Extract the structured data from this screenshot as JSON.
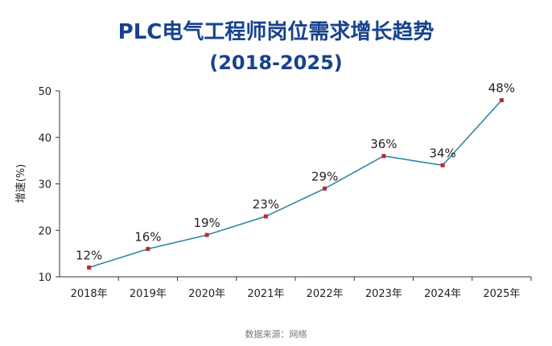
{
  "chart_data": {
    "type": "line",
    "title": "PLC电气工程师岗位需求增长趋势",
    "subtitle": "(2018-2025)",
    "ylabel": "增速(%)",
    "xlabel": "",
    "categories": [
      "2018年",
      "2019年",
      "2020年",
      "2021年",
      "2022年",
      "2023年",
      "2024年",
      "2025年"
    ],
    "values": [
      12,
      16,
      19,
      23,
      29,
      36,
      34,
      48
    ],
    "data_labels": [
      "12%",
      "16%",
      "19%",
      "23%",
      "29%",
      "36%",
      "34%",
      "48%"
    ],
    "ylim": [
      10,
      50
    ],
    "yticks": [
      "10",
      "20",
      "30",
      "40",
      "50"
    ],
    "grid": false,
    "line_color": "#2f86a6",
    "marker_color": "#c0272d",
    "source": "数据来源：网络"
  }
}
